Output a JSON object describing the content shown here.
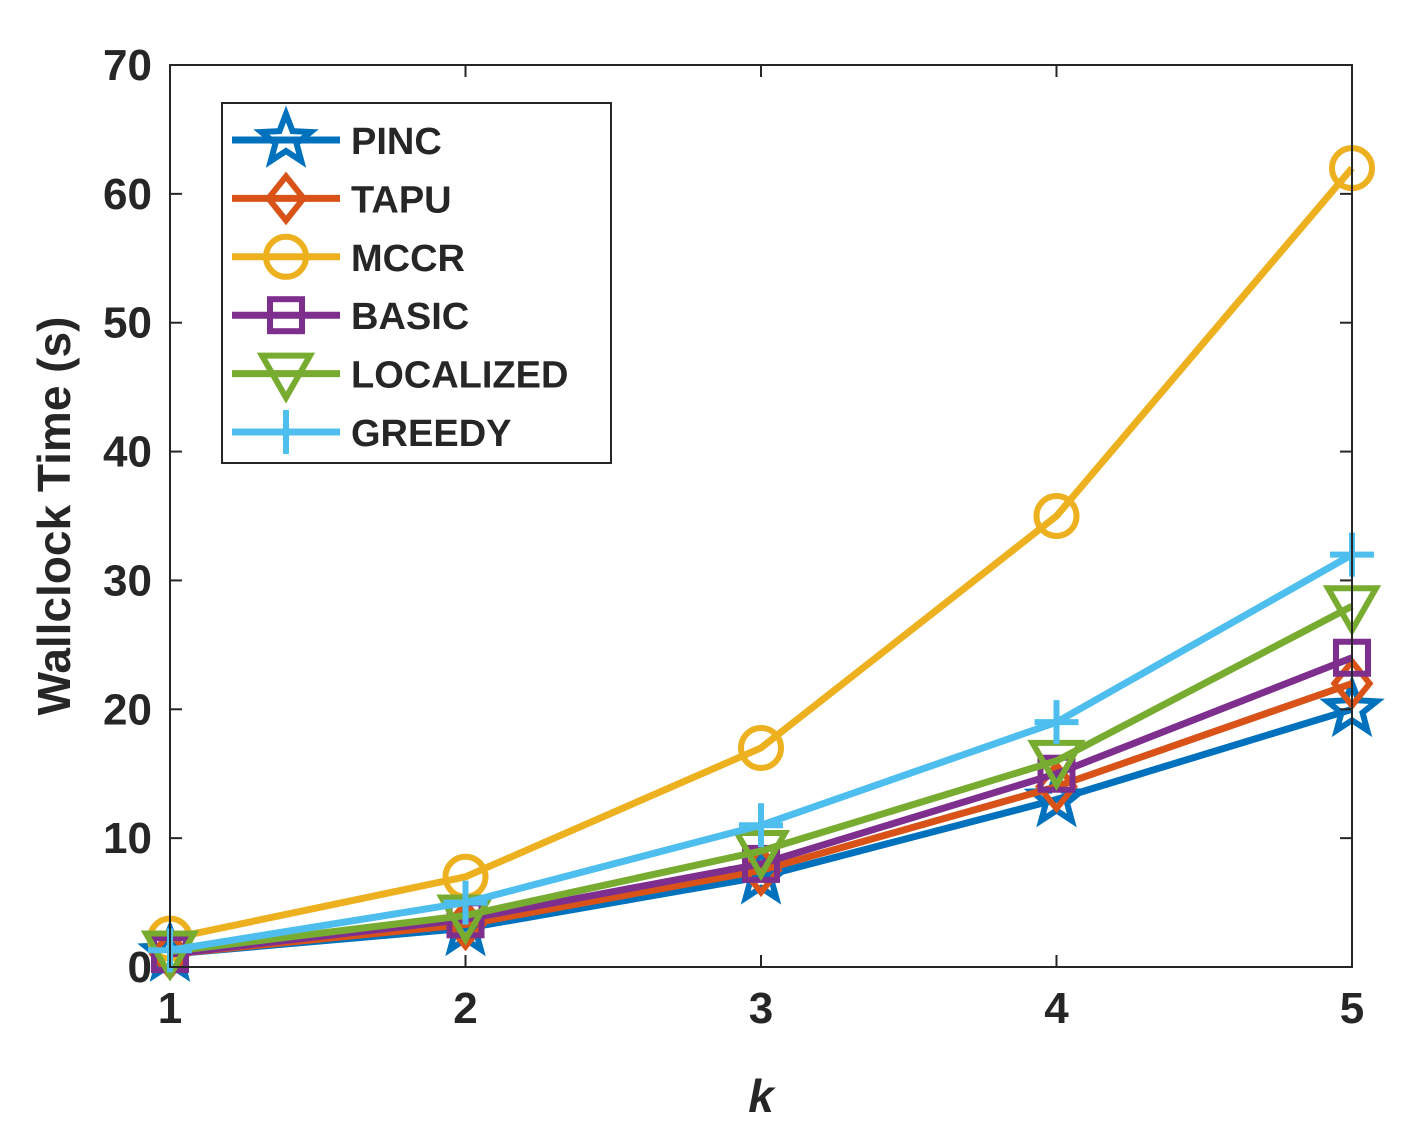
{
  "chart_data": {
    "type": "line",
    "title": "",
    "xlabel": "k",
    "ylabel": "Wallclock Time (s)",
    "x": [
      1,
      2,
      3,
      4,
      5
    ],
    "xlim": [
      1,
      5
    ],
    "ylim": [
      0,
      70
    ],
    "xticks": [
      "1",
      "2",
      "3",
      "4",
      "5"
    ],
    "yticks": [
      "0",
      "10",
      "20",
      "30",
      "40",
      "50",
      "60",
      "70"
    ],
    "grid": false,
    "legend_position": "top-left",
    "series": [
      {
        "name": "PINC",
        "marker": "star",
        "color": "#0072BD",
        "values": [
          1,
          3,
          7,
          13,
          20
        ]
      },
      {
        "name": "TAPU",
        "marker": "diamond",
        "color": "#D95319",
        "values": [
          1,
          3.3,
          7.5,
          14,
          22
        ]
      },
      {
        "name": "MCCR",
        "marker": "circle",
        "color": "#EDB120",
        "values": [
          2.2,
          7,
          17,
          35,
          62
        ]
      },
      {
        "name": "BASIC",
        "marker": "square",
        "color": "#7E2F8E",
        "values": [
          1,
          3.7,
          8,
          15,
          24
        ]
      },
      {
        "name": "LOCALIZED",
        "marker": "triangle-down",
        "color": "#77AC30",
        "values": [
          1.2,
          4,
          9,
          16,
          28
        ]
      },
      {
        "name": "GREEDY",
        "marker": "plus",
        "color": "#4DBEEE",
        "values": [
          1.3,
          5,
          11,
          19,
          32
        ]
      }
    ]
  }
}
